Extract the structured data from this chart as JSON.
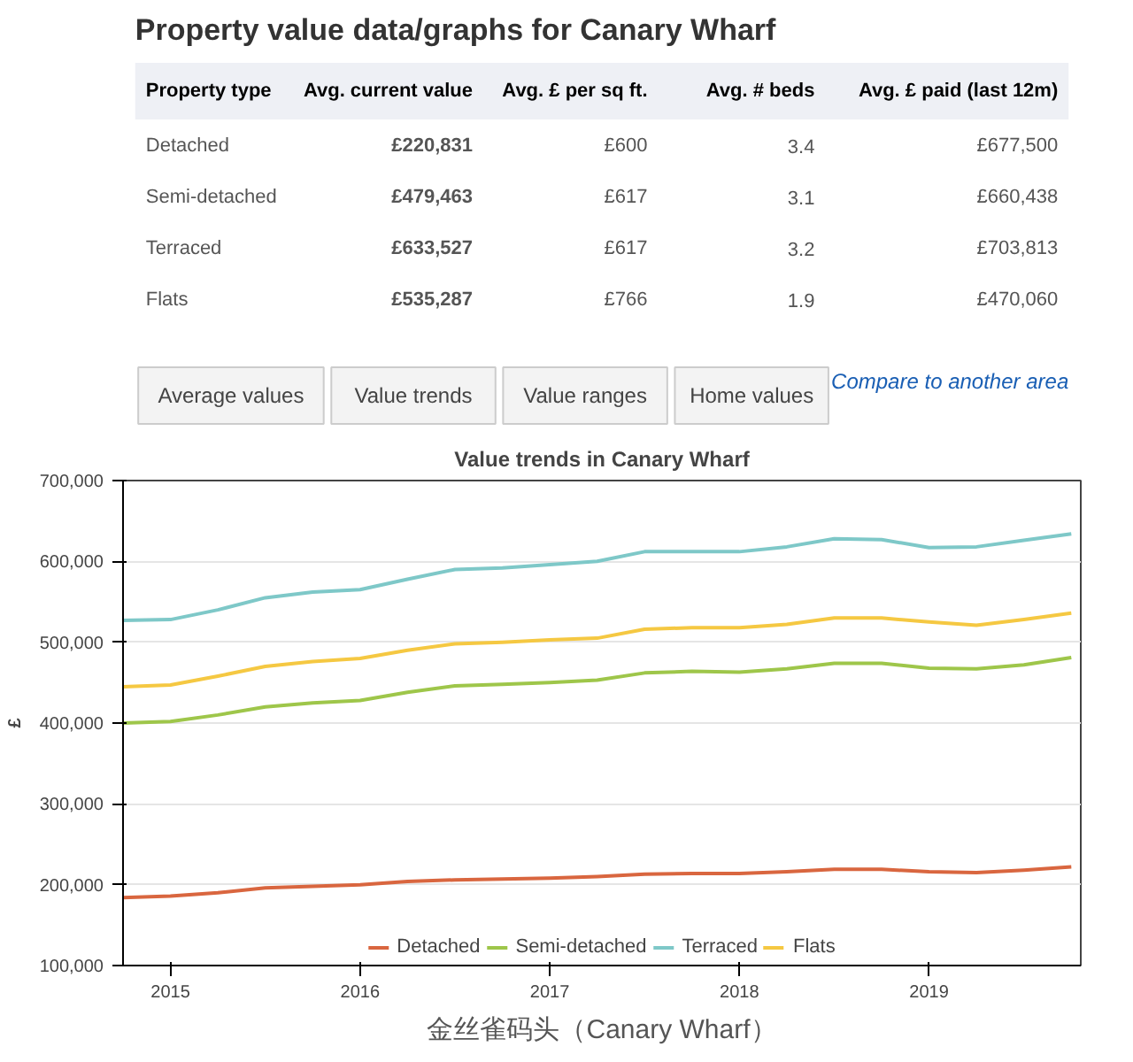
{
  "chart_data": [
    {
      "type": "other",
      "title": "Property value data/graphs for Canary Wharf",
      "categories": [
        "Property type",
        "Avg. current value",
        "Avg. £ per sq ft.",
        "Avg. # beds",
        "Avg. £ paid (last 12m)"
      ],
      "y_categories": [
        "Detached",
        "Semi-detached",
        "Terraced",
        "Flats"
      ],
      "cell_labels": [
        [
          "£220,831",
          "£600",
          "3.4",
          "£677,500"
        ],
        [
          "£479,463",
          "£617",
          "3.1",
          "£660,438"
        ],
        [
          "£633,527",
          "£617",
          "3.2",
          "£703,813"
        ],
        [
          "£535,287",
          "£766",
          "1.9",
          "£470,060"
        ]
      ],
      "annotations": [
        "Average values",
        "Value trends",
        "Value ranges",
        "Home values",
        "Compare to another area"
      ]
    },
    {
      "type": "line",
      "title": "Value trends in Canary Wharf",
      "ylabel": "£",
      "x": [
        2014.75,
        2015.0,
        2015.25,
        2015.5,
        2015.75,
        2016.0,
        2016.25,
        2016.5,
        2016.75,
        2017.0,
        2017.25,
        2017.5,
        2017.75,
        2018.0,
        2018.25,
        2018.5,
        2018.75,
        2019.0,
        2019.25,
        2019.5,
        2019.75
      ],
      "series": [
        {
          "name": "Detached",
          "color": "#d9663f",
          "values": [
            184000,
            186000,
            190000,
            196000,
            198000,
            200000,
            204000,
            206000,
            207000,
            208000,
            210000,
            213000,
            214000,
            214000,
            216000,
            219000,
            219000,
            216000,
            215000,
            218000,
            222000
          ]
        },
        {
          "name": "Semi-detached",
          "color": "#9ec64a",
          "values": [
            400000,
            402000,
            410000,
            420000,
            425000,
            428000,
            438000,
            446000,
            448000,
            450000,
            453000,
            462000,
            464000,
            463000,
            467000,
            474000,
            474000,
            468000,
            467000,
            472000,
            481000
          ]
        },
        {
          "name": "Terraced",
          "color": "#7ec8c8",
          "values": [
            527000,
            528000,
            540000,
            555000,
            562000,
            565000,
            578000,
            590000,
            592000,
            596000,
            600000,
            612000,
            612000,
            612000,
            618000,
            628000,
            627000,
            617000,
            618000,
            626000,
            634000
          ]
        },
        {
          "name": "Flats",
          "color": "#f5c842",
          "values": [
            445000,
            447000,
            458000,
            470000,
            476000,
            480000,
            490000,
            498000,
            500000,
            503000,
            505000,
            516000,
            518000,
            518000,
            522000,
            530000,
            530000,
            525000,
            521000,
            528000,
            536000
          ]
        }
      ],
      "xlim": [
        2014.75,
        2019.8
      ],
      "xticks": [
        2015,
        2016,
        2017,
        2018,
        2019
      ],
      "ylim": [
        100000,
        700000
      ],
      "yticks": [
        {
          "value": 100000,
          "label": "100,000"
        },
        {
          "value": 200000,
          "label": "200,000"
        },
        {
          "value": 300000,
          "label": "300,000"
        },
        {
          "value": 400000,
          "label": "400,000"
        },
        {
          "value": 500000,
          "label": "500,000"
        },
        {
          "value": 600000,
          "label": "600,000"
        },
        {
          "value": 700000,
          "label": "700,000"
        }
      ],
      "grid": "y",
      "legend": "bottom",
      "marker": "none",
      "line_style": "solid",
      "annotations": [
        "金丝雀码头（Canary Wharf）"
      ]
    }
  ]
}
